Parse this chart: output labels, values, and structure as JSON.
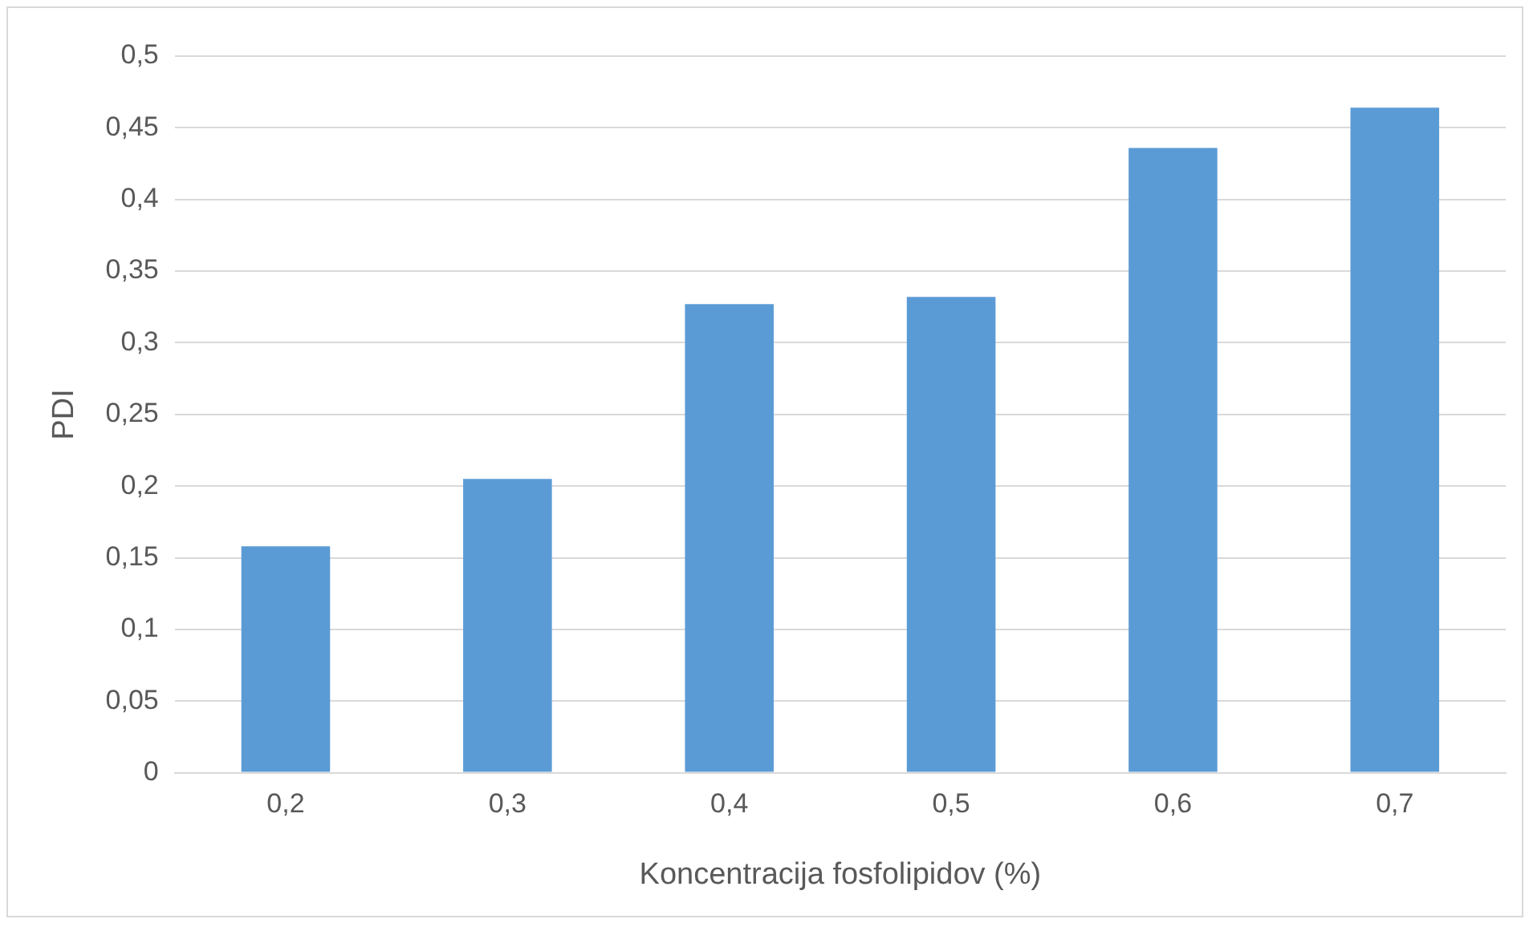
{
  "chart_data": {
    "type": "bar",
    "xlabel": "Koncentracija fosfolipidov (%)",
    "ylabel": "PDI",
    "categories": [
      "0,2",
      "0,3",
      "0,4",
      "0,5",
      "0,6",
      "0,7"
    ],
    "values": [
      0.158,
      0.205,
      0.327,
      0.332,
      0.436,
      0.464
    ],
    "color": "#5b9bd5",
    "ylim": [
      0,
      0.5
    ],
    "yticks": [
      0,
      {
        "value": 0.05,
        "label": "0,05"
      },
      {
        "value": 0.1,
        "label": "0,1"
      },
      {
        "value": 0.15,
        "label": "0,15"
      },
      {
        "value": 0.2,
        "label": "0,2"
      },
      {
        "value": 0.25,
        "label": "0,25"
      },
      {
        "value": 0.3,
        "label": "0,3"
      },
      {
        "value": 0.35,
        "label": "0,35"
      },
      {
        "value": 0.4,
        "label": "0,4"
      },
      {
        "value": 0.45,
        "label": "0,45"
      },
      {
        "value": 0.5,
        "label": "0,5"
      }
    ],
    "grid": "y"
  }
}
